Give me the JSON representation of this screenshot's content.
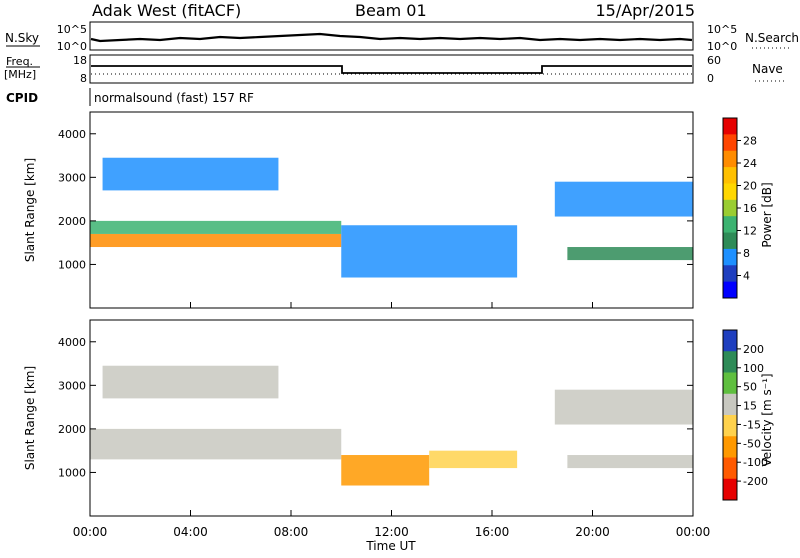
{
  "header": {
    "station": "Adak West (fitACF)",
    "beam": "Beam 01",
    "date": "15/Apr/2015"
  },
  "top_panels": {
    "nsky_label": "N.Sky",
    "nsky_ticks": [
      "10^5",
      "10^0"
    ],
    "nsearch_label": "N.Search",
    "nsearch_ticks": [
      "10^5",
      "10^0"
    ],
    "freq_label": "Freq.",
    "freq_unit": "[MHz]",
    "freq_ticks": [
      "18",
      "8"
    ],
    "nave_label": "Nave",
    "nave_ticks": [
      "60",
      "0"
    ],
    "cpid_label": "CPID",
    "cpid_value": "normalsound (fast) 157 RF"
  },
  "colorbars": {
    "power": {
      "title": "Power [dB]",
      "ticks": [
        "28",
        "24",
        "20",
        "16",
        "12",
        "8",
        "4"
      ],
      "colors": [
        "#e60000",
        "#ff4500",
        "#ff8c00",
        "#ffc000",
        "#ffd700",
        "#9acd32",
        "#3cb371",
        "#2e8b57",
        "#1e90ff",
        "#1f3fbf",
        "#0000ff"
      ]
    },
    "velocity": {
      "title": "Velocity [m s⁻¹]",
      "ticks": [
        "200",
        "100",
        "50",
        "15",
        "-15",
        "-50",
        "-100",
        "-200"
      ],
      "colors": [
        "#1f3fbf",
        "#2e8b57",
        "#5fbf3f",
        "#c8c8c0",
        "#ffd24d",
        "#ff9900",
        "#ff5a00",
        "#e60000"
      ]
    }
  },
  "chart_data": [
    {
      "type": "heatmap",
      "name": "power",
      "ylabel": "Slant Range [km]",
      "ylim": [
        0,
        4500
      ],
      "yticks": [
        "4000",
        "3000",
        "2000",
        "1000"
      ],
      "regions": [
        {
          "start": "00:00",
          "end": "10:00",
          "range_km": [
            1400,
            1700
          ],
          "value_db": 26
        },
        {
          "start": "00:00",
          "end": "10:00",
          "range_km": [
            1700,
            2000
          ],
          "value_db": 14
        },
        {
          "start": "00:30",
          "end": "07:30",
          "range_km": [
            2700,
            3450
          ],
          "value_db": 8
        },
        {
          "start": "10:00",
          "end": "17:00",
          "range_km": [
            700,
            1900
          ],
          "value_db": 8
        },
        {
          "start": "18:30",
          "end": "24:00",
          "range_km": [
            2100,
            2900
          ],
          "value_db": 6
        },
        {
          "start": "19:00",
          "end": "24:00",
          "range_km": [
            1100,
            1400
          ],
          "value_db": 10
        }
      ]
    },
    {
      "type": "heatmap",
      "name": "velocity",
      "xlabel": "Time UT",
      "ylabel": "Slant Range [km]",
      "ylim": [
        0,
        4500
      ],
      "yticks": [
        "4000",
        "3000",
        "2000",
        "1000"
      ],
      "xticks": [
        "00:00",
        "04:00",
        "08:00",
        "12:00",
        "16:00",
        "20:00",
        "00:00"
      ],
      "regions": [
        {
          "start": "00:00",
          "end": "10:00",
          "range_km": [
            1300,
            2000
          ],
          "value_ms": 0
        },
        {
          "start": "00:30",
          "end": "07:30",
          "range_km": [
            2700,
            3450
          ],
          "value_ms": 0
        },
        {
          "start": "10:00",
          "end": "13:30",
          "range_km": [
            700,
            1400
          ],
          "value_ms": -60
        },
        {
          "start": "13:30",
          "end": "17:00",
          "range_km": [
            1100,
            1500
          ],
          "value_ms": -30
        },
        {
          "start": "18:30",
          "end": "24:00",
          "range_km": [
            2100,
            2900
          ],
          "value_ms": 0
        },
        {
          "start": "19:00",
          "end": "24:00",
          "range_km": [
            1100,
            1400
          ],
          "value_ms": 0
        }
      ]
    }
  ]
}
